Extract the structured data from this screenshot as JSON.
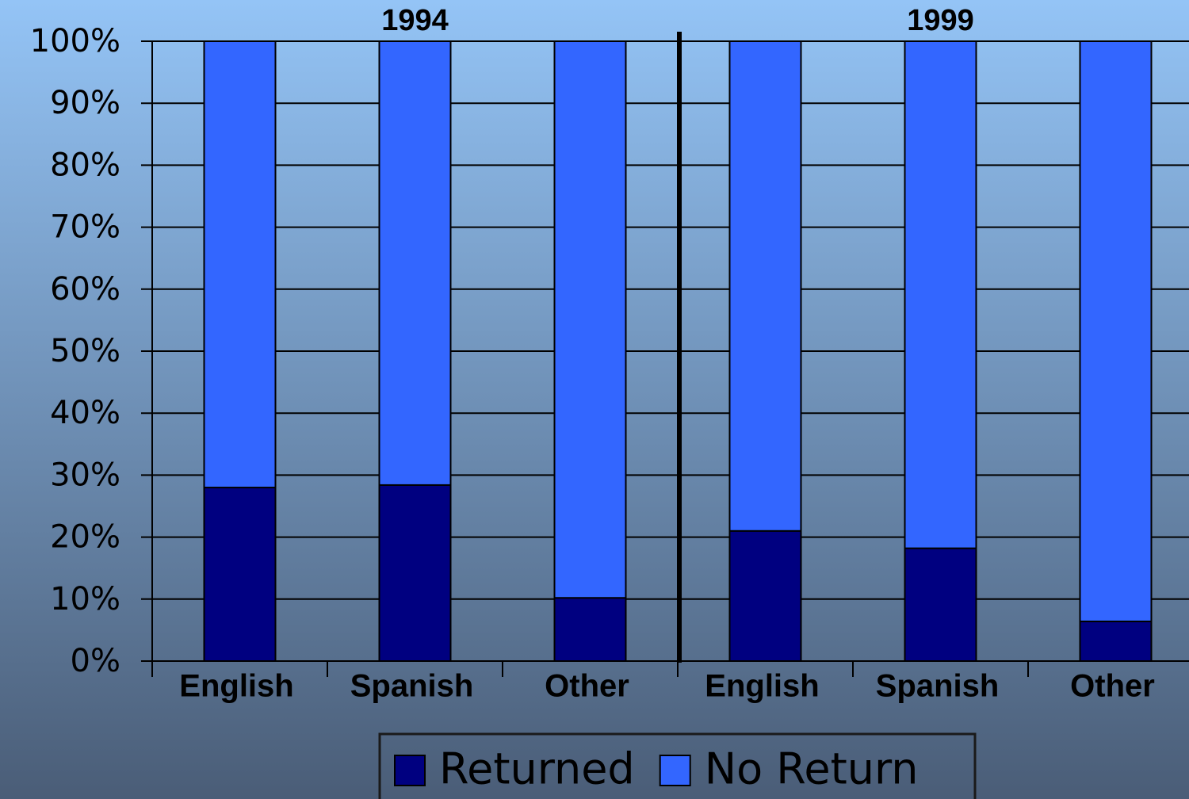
{
  "chart_data": {
    "type": "stacked_bar",
    "categories": [
      "English",
      "Spanish",
      "Other",
      "English",
      "Spanish",
      "Other"
    ],
    "groups": [
      "1994",
      "1999"
    ],
    "series": [
      {
        "name": "Returned",
        "color": "#000080",
        "values": [
          28,
          28.4,
          10.2,
          21,
          18.2,
          6.4
        ]
      },
      {
        "name": "No Return",
        "color": "#3366ff",
        "values": [
          72,
          71.6,
          89.8,
          79,
          81.8,
          93.6
        ]
      }
    ],
    "ylim": [
      0,
      100
    ],
    "yticks": [
      {
        "value": 0,
        "label": "0%"
      },
      {
        "value": 10,
        "label": "10%"
      },
      {
        "value": 20,
        "label": "20%"
      },
      {
        "value": 30,
        "label": "30%"
      },
      {
        "value": 40,
        "label": "40%"
      },
      {
        "value": 50,
        "label": "50%"
      },
      {
        "value": 60,
        "label": "60%"
      },
      {
        "value": 70,
        "label": "70%"
      },
      {
        "value": 80,
        "label": "80%"
      },
      {
        "value": 90,
        "label": "90%"
      },
      {
        "value": 100,
        "label": "100%"
      }
    ],
    "grid": true,
    "legend": "bottom"
  }
}
